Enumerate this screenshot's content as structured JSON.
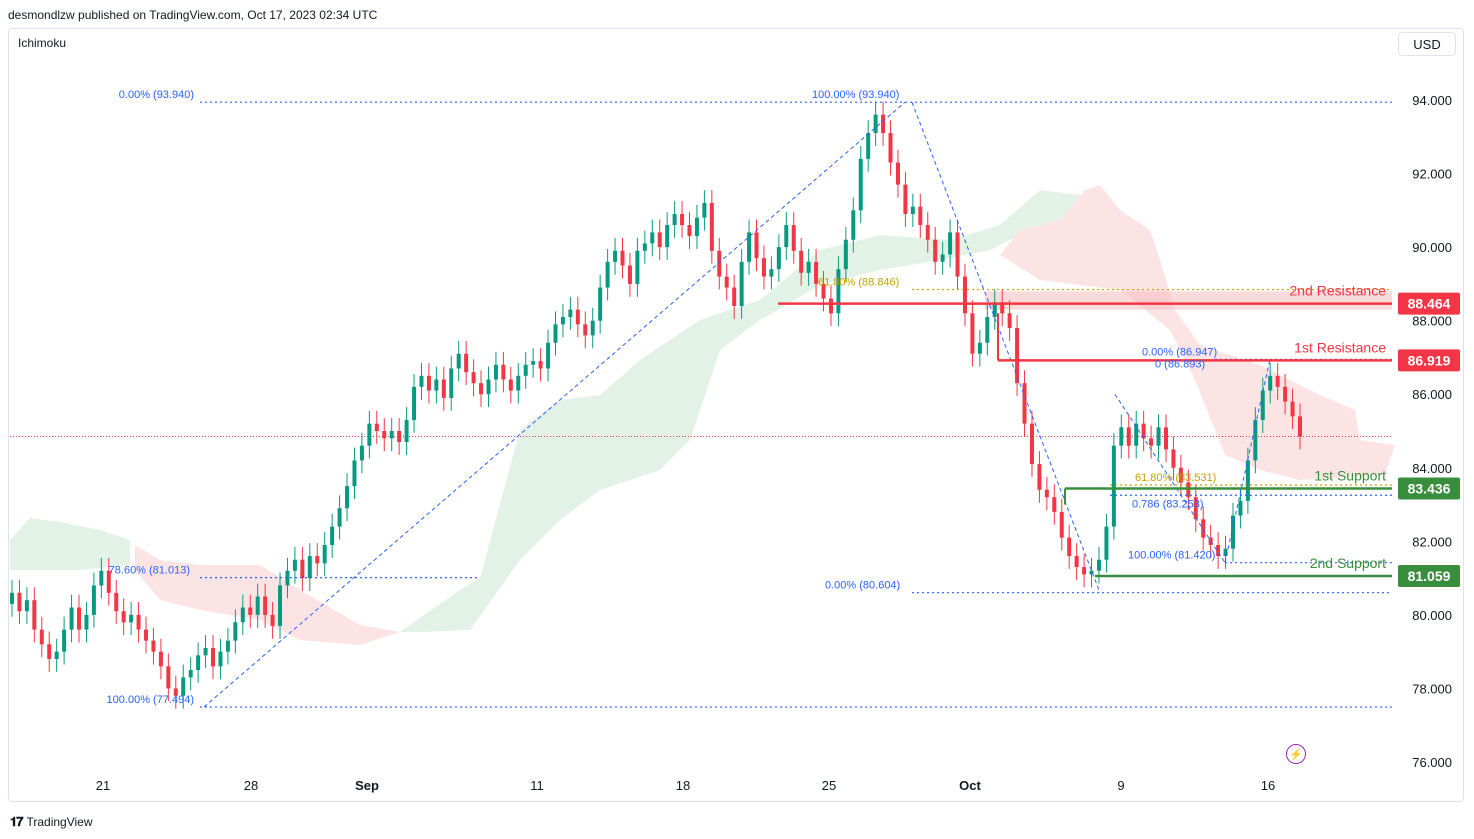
{
  "header": {
    "published": "desmondlzw published on TradingView.com, Oct 17, 2023 02:34 UTC"
  },
  "indicator_label": "Ichimoku",
  "currency_button": "USD",
  "footer": {
    "brand": "TradingView",
    "logo_glyph": "𝟏𝟕"
  },
  "bolt_icon": "⚡",
  "colors": {
    "up": "#089981",
    "down": "#f23645",
    "fib": "#2962ff",
    "golden": "#c9a100",
    "support": "#388e3c",
    "resistance": "#f23645",
    "cloud_bull": "#e3f2e6",
    "cloud_bear": "#fde4e4"
  },
  "chart_data": {
    "type": "candlestick",
    "title": "",
    "y_ticks": [
      "94.000",
      "92.000",
      "90.000",
      "88.000",
      "86.000",
      "84.000",
      "82.000",
      "80.000",
      "78.000",
      "76.000"
    ],
    "ylim": [
      75.5,
      95.5
    ],
    "x_ticks": [
      "21",
      "28",
      "Sep",
      "11",
      "18",
      "25",
      "Oct",
      "9",
      "16"
    ],
    "price_labels": [
      {
        "value": 88.464,
        "text": "88.464",
        "kind": "resistance"
      },
      {
        "value": 86.919,
        "text": "86.919",
        "kind": "resistance"
      },
      {
        "value": 83.436,
        "text": "83.436",
        "kind": "support"
      },
      {
        "value": 81.059,
        "text": "81.059",
        "kind": "support"
      }
    ],
    "zone_labels": [
      {
        "text": "2nd Resistance",
        "value": 88.464,
        "kind": "resistance"
      },
      {
        "text": "1st Resistance",
        "value": 86.919,
        "kind": "resistance"
      },
      {
        "text": "1st Support",
        "value": 83.436,
        "kind": "support"
      },
      {
        "text": "2nd Support",
        "value": 81.059,
        "kind": "support"
      }
    ],
    "fib_labels": [
      {
        "text": "0.00% (93.940)",
        "value": 93.94
      },
      {
        "text": "78.60% (81.013)",
        "value": 81.013
      },
      {
        "text": "100.00% (77.494)",
        "value": 77.494
      },
      {
        "text": "100.00% (93.940)",
        "value": 93.94
      },
      {
        "text": "61.80% (88.846)",
        "value": 88.846
      },
      {
        "text": "0.00% (86.947)",
        "value": 86.947
      },
      {
        "text": "0 (86.893)",
        "value": 86.893
      },
      {
        "text": "61.80% (83.531)",
        "value": 83.531
      },
      {
        "text": "0.786 (83.253)",
        "value": 83.253
      },
      {
        "text": "100.00% (81.420)",
        "value": 81.42
      },
      {
        "text": "0.00% (80.604)",
        "value": 80.604
      }
    ],
    "last_price": 84.85,
    "candles": [
      80.6,
      80.1,
      80.4,
      79.6,
      79.2,
      78.8,
      79.0,
      79.6,
      80.2,
      79.6,
      80.0,
      80.8,
      81.2,
      80.6,
      80.1,
      79.8,
      80.0,
      79.6,
      79.3,
      79.0,
      78.6,
      78.0,
      77.8,
      78.3,
      78.5,
      78.9,
      79.1,
      78.6,
      79.0,
      79.3,
      79.8,
      80.2,
      80.0,
      80.5,
      80.0,
      79.7,
      80.8,
      81.2,
      81.5,
      81.0,
      81.6,
      81.4,
      81.9,
      82.4,
      82.9,
      83.5,
      84.2,
      84.6,
      85.2,
      85.0,
      84.8,
      85.0,
      84.7,
      85.3,
      86.2,
      86.5,
      86.1,
      86.4,
      85.9,
      86.7,
      87.1,
      86.6,
      86.3,
      86.0,
      86.4,
      86.8,
      86.4,
      86.1,
      86.5,
      86.8,
      86.9,
      86.7,
      87.4,
      87.9,
      88.1,
      88.3,
      87.9,
      87.6,
      88.0,
      88.9,
      89.6,
      89.9,
      89.5,
      89.0,
      89.9,
      90.1,
      90.4,
      90.0,
      90.6,
      90.9,
      90.6,
      90.3,
      90.8,
      91.2,
      89.9,
      89.2,
      88.9,
      88.4,
      89.6,
      90.4,
      89.7,
      89.2,
      89.4,
      90.0,
      90.6,
      89.9,
      89.3,
      89.6,
      89.0,
      88.6,
      88.2,
      89.4,
      90.2,
      91.0,
      92.4,
      93.1,
      93.6,
      93.1,
      92.3,
      91.7,
      90.9,
      91.1,
      90.6,
      90.2,
      89.6,
      89.8,
      90.4,
      89.2,
      88.2,
      87.1,
      87.4,
      88.1,
      88.5,
      88.2,
      87.8,
      86.3,
      85.2,
      84.1,
      83.4,
      83.2,
      82.8,
      82.1,
      81.6,
      81.3,
      81.1,
      81.2,
      81.5,
      82.4,
      84.6,
      85.1,
      84.6,
      85.2,
      84.8,
      84.6,
      85.1,
      84.5,
      84.0,
      83.6,
      83.2,
      82.6,
      82.1,
      81.9,
      81.6,
      81.8,
      82.7,
      83.1,
      84.2,
      85.3,
      86.1,
      86.5,
      86.2,
      85.8,
      85.4,
      84.85
    ]
  }
}
